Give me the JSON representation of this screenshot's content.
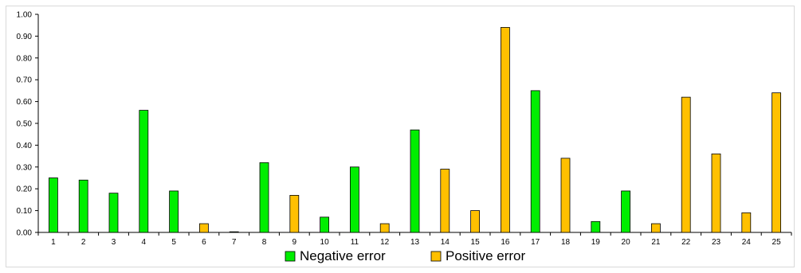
{
  "chart_data": {
    "type": "bar",
    "categories": [
      "1",
      "2",
      "3",
      "4",
      "5",
      "6",
      "7",
      "8",
      "9",
      "10",
      "11",
      "12",
      "13",
      "14",
      "15",
      "16",
      "17",
      "18",
      "19",
      "20",
      "21",
      "22",
      "23",
      "24",
      "25"
    ],
    "series": [
      {
        "name": "Negative error",
        "color": "#00ee00",
        "values": [
          0.25,
          0.24,
          0.18,
          0.56,
          0.19,
          null,
          0.003,
          0.32,
          null,
          0.07,
          0.3,
          null,
          0.47,
          null,
          null,
          null,
          0.65,
          null,
          0.05,
          0.19,
          null,
          null,
          null,
          null,
          null
        ]
      },
      {
        "name": "Positive error",
        "color": "#ffc000",
        "values": [
          null,
          null,
          null,
          null,
          null,
          0.04,
          null,
          null,
          0.17,
          null,
          null,
          0.04,
          null,
          0.29,
          0.1,
          0.94,
          null,
          0.34,
          null,
          null,
          0.04,
          0.62,
          0.36,
          0.09,
          0.64
        ]
      }
    ],
    "y_ticks": [
      "0.00",
      "0.10",
      "0.20",
      "0.30",
      "0.40",
      "0.50",
      "0.60",
      "0.70",
      "0.80",
      "0.90",
      "1.00"
    ],
    "ylim": [
      0,
      1.0
    ],
    "title": "",
    "xlabel": "",
    "ylabel": "",
    "grid": false,
    "legend_position": "bottom"
  }
}
